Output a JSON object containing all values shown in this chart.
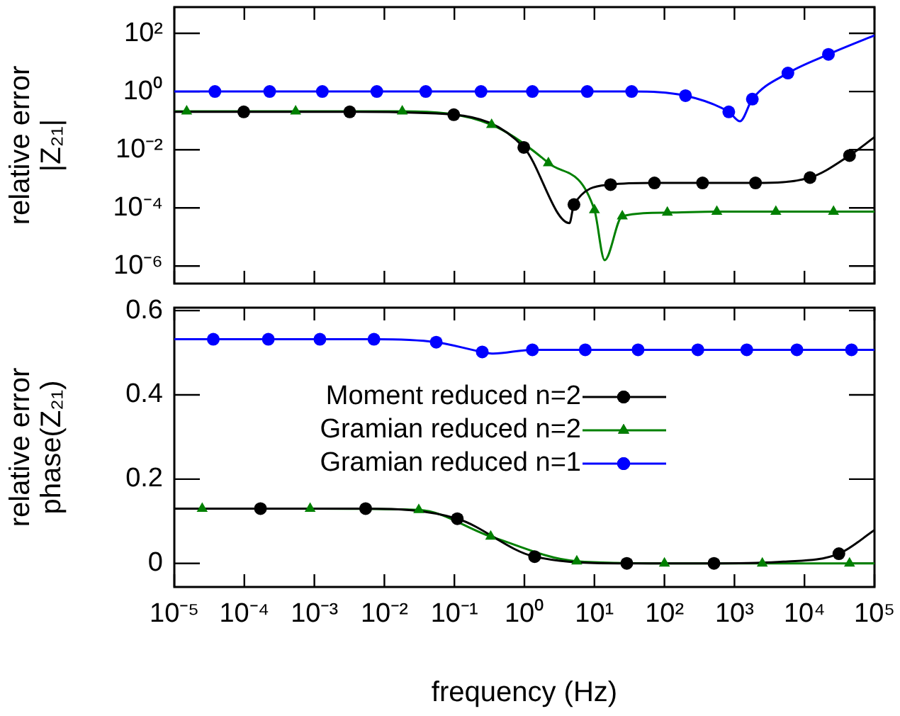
{
  "chart_data": [
    {
      "type": "scatter",
      "ylabel": "relative error\n|Z₂₁|",
      "log": "xy",
      "grid": false,
      "legend": false,
      "tick_labels": "y",
      "xlim": [
        1e-05,
        100000.0
      ],
      "ylim": [
        2.5e-07,
        800
      ],
      "xticks": [
        {
          "value": 1e-05,
          "label": null
        },
        {
          "value": 0.0001,
          "label": null
        },
        {
          "value": 0.001,
          "label": null
        },
        {
          "value": 0.01,
          "label": null
        },
        {
          "value": 0.1,
          "label": null
        },
        {
          "value": 1,
          "label": null
        },
        {
          "value": 10,
          "label": null
        },
        {
          "value": 100,
          "label": null
        },
        {
          "value": 1000,
          "label": null
        },
        {
          "value": 10000.0,
          "label": null
        },
        {
          "value": 100000.0,
          "label": null
        }
      ],
      "yticks": [
        {
          "value": 1e-06,
          "label": "10⁻⁶"
        },
        {
          "value": 0.0001,
          "label": "10⁻⁴"
        },
        {
          "value": 0.01,
          "label": "10⁻²"
        },
        {
          "value": 1,
          "label": "10⁰"
        },
        {
          "value": 100,
          "label": "10²"
        }
      ],
      "series": [
        {
          "type": "line",
          "marker": "none",
          "color": "#000000",
          "x": [
            1e-05,
            9.8e-05,
            0.0032,
            0.098,
            0.98,
            4.4,
            5.1,
            17,
            72,
            350,
            2000,
            12000,
            44000,
            100000.0
          ],
          "values": [
            0.2,
            0.2,
            0.2,
            0.16,
            0.012,
            3e-05,
            0.00013,
            0.00063,
            0.00072,
            0.00072,
            0.00072,
            0.0011,
            0.0063,
            0.027
          ]
        },
        {
          "type": "line",
          "marker": "none",
          "color": "#008000",
          "x": [
            1e-05,
            1.5e-05,
            0.00054,
            0.018,
            0.34,
            2.2,
            10,
            14,
            25,
            110,
            560,
            3900,
            26000,
            100000.0
          ],
          "values": [
            0.21,
            0.21,
            0.21,
            0.21,
            0.072,
            0.0035,
            8.5e-05,
            1.6e-06,
            5.2e-05,
            6.9e-05,
            7.4e-05,
            7.4e-05,
            7.4e-05,
            7.4e-05
          ]
        },
        {
          "type": "line",
          "marker": "none",
          "color": "#0000ff",
          "x": [
            1e-05,
            3.8e-05,
            0.00023,
            0.0013,
            0.0078,
            0.039,
            0.24,
            1.3,
            7.9,
            34,
            200,
            830,
            1200,
            1800,
            5800,
            22000,
            100000.0
          ],
          "values": [
            1,
            1,
            1,
            1,
            1,
            1,
            1,
            1,
            1,
            1,
            0.72,
            0.2,
            0.095,
            0.55,
            4.3,
            19,
            85
          ]
        },
        {
          "type": "scatter",
          "marker": "circle",
          "color": "#000000",
          "x": [
            9.8e-05,
            0.0032,
            0.098,
            0.98,
            5.1,
            17,
            72,
            350,
            2000,
            12000,
            44000
          ],
          "values": [
            0.2,
            0.2,
            0.16,
            0.012,
            0.00013,
            0.00063,
            0.00072,
            0.00072,
            0.00072,
            0.0011,
            0.0063
          ]
        },
        {
          "type": "scatter",
          "marker": "triangle",
          "color": "#008000",
          "x": [
            1.5e-05,
            0.00054,
            0.018,
            0.34,
            2.2,
            10,
            25,
            110,
            560,
            3900,
            26000
          ],
          "values": [
            0.21,
            0.21,
            0.21,
            0.072,
            0.0035,
            8.5e-05,
            5.2e-05,
            6.9e-05,
            7.4e-05,
            7.4e-05,
            7.4e-05
          ]
        },
        {
          "type": "scatter",
          "marker": "circle",
          "color": "#0000ff",
          "x": [
            3.8e-05,
            0.00023,
            0.0013,
            0.0078,
            0.039,
            0.24,
            1.3,
            7.9,
            34,
            200,
            830,
            1800,
            5800,
            22000
          ],
          "values": [
            1,
            1,
            1,
            1,
            1,
            1,
            1,
            1,
            1,
            0.72,
            0.2,
            0.55,
            4.3,
            19
          ]
        }
      ]
    },
    {
      "type": "scatter",
      "xlabel": "frequency (Hz)",
      "ylabel": "relative error\nphase(Z₂₁)",
      "log": "x",
      "grid": false,
      "legend": "center",
      "xlim": [
        1e-05,
        100000.0
      ],
      "ylim": [
        -0.056,
        0.607
      ],
      "xticks": [
        {
          "value": 1e-05,
          "label": "10⁻⁵"
        },
        {
          "value": 0.0001,
          "label": "10⁻⁴"
        },
        {
          "value": 0.001,
          "label": "10⁻³"
        },
        {
          "value": 0.01,
          "label": "10⁻²"
        },
        {
          "value": 0.1,
          "label": "10⁻¹"
        },
        {
          "value": 1,
          "label": "10⁰"
        },
        {
          "value": 10,
          "label": "10¹"
        },
        {
          "value": 100,
          "label": "10²"
        },
        {
          "value": 1000,
          "label": "10³"
        },
        {
          "value": 10000.0,
          "label": "10⁴"
        },
        {
          "value": 100000.0,
          "label": "10⁵"
        }
      ],
      "yticks": [
        0,
        0.2,
        0.4,
        0.6
      ],
      "series": [
        {
          "type": "line",
          "marker": "none",
          "color": "#000000",
          "x": [
            1e-05,
            0.00017,
            0.0054,
            0.11,
            1.4,
            29,
            510,
            5000,
            31000,
            100000.0
          ],
          "values": [
            0.13,
            0.13,
            0.13,
            0.106,
            0.016,
            0,
            0,
            0.004,
            0.023,
            0.079
          ]
        },
        {
          "type": "line",
          "marker": "none",
          "color": "#008000",
          "x": [
            1e-05,
            2.5e-05,
            0.00087,
            0.031,
            0.33,
            5.6,
            100,
            2500,
            44000,
            100000.0
          ],
          "values": [
            0.13,
            0.13,
            0.13,
            0.127,
            0.064,
            0.005,
            0,
            0,
            0,
            0
          ]
        },
        {
          "type": "line",
          "marker": "none",
          "color": "#0000ff",
          "x": [
            1e-05,
            3.6e-05,
            0.00022,
            0.0012,
            0.0071,
            0.055,
            0.25,
            0.36,
            1.3,
            7.4,
            42,
            300,
            1500,
            7800,
            47000,
            100000.0
          ],
          "values": [
            0.532,
            0.532,
            0.532,
            0.532,
            0.532,
            0.525,
            0.502,
            0.498,
            0.507,
            0.507,
            0.507,
            0.507,
            0.507,
            0.507,
            0.507,
            0.507
          ]
        },
        {
          "type": "scatter",
          "name": "Moment reduced n=2",
          "marker": "circle",
          "color": "#000000",
          "x": [
            0.00017,
            0.0054,
            0.11,
            1.4,
            29,
            510,
            31000
          ],
          "values": [
            0.13,
            0.13,
            0.106,
            0.016,
            0,
            0,
            0.023
          ]
        },
        {
          "type": "scatter",
          "name": "Gramian reduced n=2",
          "marker": "triangle",
          "color": "#008000",
          "x": [
            2.5e-05,
            0.00087,
            0.031,
            0.33,
            5.6,
            100,
            2500,
            44000
          ],
          "values": [
            0.13,
            0.13,
            0.127,
            0.064,
            0.005,
            0,
            0,
            0
          ]
        },
        {
          "type": "scatter",
          "name": "Gramian reduced n=1",
          "marker": "circle",
          "color": "#0000ff",
          "x": [
            3.6e-05,
            0.00022,
            0.0012,
            0.0071,
            0.055,
            0.25,
            1.3,
            7.4,
            42,
            300,
            1500,
            7800,
            47000
          ],
          "values": [
            0.532,
            0.532,
            0.532,
            0.532,
            0.525,
            0.502,
            0.507,
            0.507,
            0.507,
            0.507,
            0.507,
            0.507,
            0.507
          ]
        }
      ]
    }
  ]
}
